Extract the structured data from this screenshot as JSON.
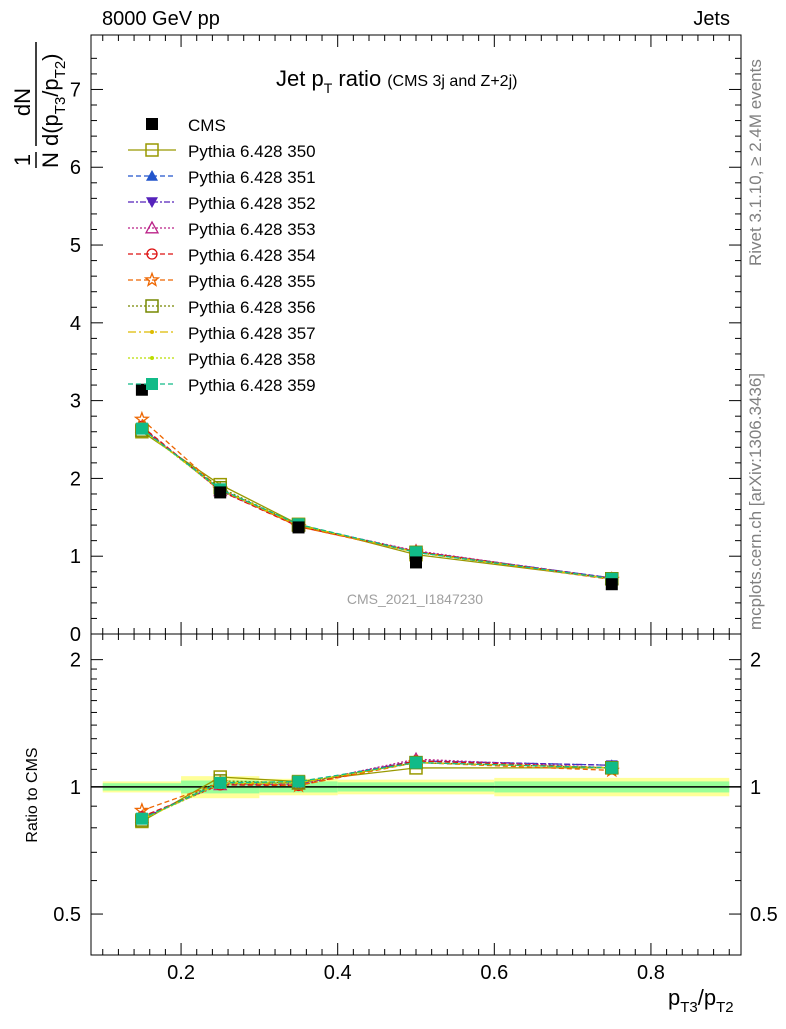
{
  "header": {
    "left_label": "8000 GeV pp",
    "right_label": "Jets"
  },
  "side_labels": {
    "rivet": "Rivet 3.1.10, ≥ 2.4M events",
    "mcplots": "mcplots.cern.ch [arXiv:1306.3436]"
  },
  "chart_data": {
    "type": "line",
    "title_main": "Jet p",
    "title_sub": "T",
    "title_rest": " ratio",
    "title_note": "(CMS 3j and Z+2j)",
    "watermark": "CMS_2021_I1847230",
    "xlabel": "p_T3/p_T2",
    "ylabel_top": "1/N dN/d(p_T3/p_T2)",
    "ylabel_bottom": "Ratio to CMS",
    "xlim": [
      0.085,
      0.915
    ],
    "x_ticks": [
      "0.2",
      "0.4",
      "0.6",
      "0.8"
    ],
    "x_tick_values": [
      0.2,
      0.4,
      0.6,
      0.8
    ],
    "ylim_top": [
      0,
      7.7
    ],
    "y_ticks_top": [
      "0",
      "1",
      "2",
      "3",
      "4",
      "5",
      "6",
      "7"
    ],
    "ylim_ratio": [
      0.4,
      2.3
    ],
    "y_ticks_ratio": [
      "0.5",
      "1",
      "2"
    ],
    "ratio_log_scale": true,
    "x": [
      0.15,
      0.25,
      0.35,
      0.5,
      0.75
    ],
    "data": {
      "name": "CMS",
      "values": [
        3.14,
        1.82,
        1.37,
        0.92,
        0.64
      ],
      "color": "#000000"
    },
    "band_edges": [
      0.1,
      0.2,
      0.3,
      0.4,
      0.6,
      0.9
    ],
    "band_inner": [
      0.02,
      0.035,
      0.03,
      0.025,
      0.03
    ],
    "band_outer": [
      0.03,
      0.06,
      0.045,
      0.04,
      0.05
    ],
    "band_colors": {
      "inner": "#99ff99",
      "outer": "#ffff99"
    },
    "series": [
      {
        "name": "Pythia 6.428 350",
        "color": "#999900",
        "dash": "",
        "marker": "square-open",
        "values": [
          2.6,
          1.92,
          1.41,
          1.02,
          0.71
        ]
      },
      {
        "name": "Pythia 6.428 351",
        "color": "#2255cc",
        "dash": "5,3",
        "marker": "triangle-up",
        "values": [
          2.65,
          1.86,
          1.4,
          1.06,
          0.72
        ]
      },
      {
        "name": "Pythia 6.428 352",
        "color": "#5522bb",
        "dash": "6,2,2,2",
        "marker": "triangle-down",
        "values": [
          2.64,
          1.85,
          1.39,
          1.06,
          0.72
        ]
      },
      {
        "name": "Pythia 6.428 353",
        "color": "#bb2288",
        "dash": "2,2",
        "marker": "triangle-open",
        "values": [
          2.66,
          1.84,
          1.39,
          1.07,
          0.71
        ]
      },
      {
        "name": "Pythia 6.428 354",
        "color": "#dd1111",
        "dash": "5,3",
        "marker": "circle-open",
        "values": [
          2.67,
          1.84,
          1.38,
          1.06,
          0.71
        ]
      },
      {
        "name": "Pythia 6.428 355",
        "color": "#ee6600",
        "dash": "5,3",
        "marker": "star",
        "values": [
          2.76,
          1.86,
          1.38,
          1.05,
          0.7
        ]
      },
      {
        "name": "Pythia 6.428 356",
        "color": "#778800",
        "dash": "2,2",
        "marker": "square-open",
        "values": [
          2.62,
          1.88,
          1.4,
          1.05,
          0.71
        ]
      },
      {
        "name": "Pythia 6.428 357",
        "color": "#ddbb00",
        "dash": "8,3,2,3",
        "marker": "small-dot",
        "values": [
          2.63,
          1.86,
          1.4,
          1.05,
          0.71
        ]
      },
      {
        "name": "Pythia 6.428 358",
        "color": "#bbdd00",
        "dash": "2,2",
        "marker": "small-dot",
        "values": [
          2.63,
          1.85,
          1.4,
          1.05,
          0.71
        ]
      },
      {
        "name": "Pythia 6.428 359",
        "color": "#11bb88",
        "dash": "5,3",
        "marker": "square-filled",
        "values": [
          2.64,
          1.86,
          1.41,
          1.05,
          0.71
        ]
      }
    ]
  }
}
